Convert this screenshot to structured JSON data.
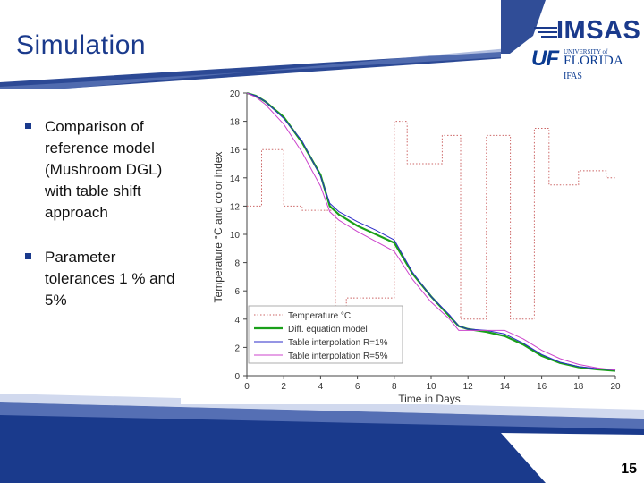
{
  "slide": {
    "title": "Simulation",
    "page_number": "15",
    "bullets": [
      "Comparison of reference model (Mushroom DGL)  with table shift approach",
      "Parameter tolerances 1 % and 5%"
    ]
  },
  "logo": {
    "imsas": "IMSAS",
    "uf": "UF",
    "university_of": "UNIVERSITY of",
    "florida": "FLORIDA",
    "ifas": "IFAS"
  },
  "colors": {
    "title": "#1a3a8c",
    "band": "#1a3a8c",
    "temperature": "#cc6666",
    "diff_eq": "#1aa01a",
    "table_1pct": "#2b2bc8",
    "table_5pct": "#cc44cc"
  },
  "chart_data": {
    "type": "line",
    "xlabel": "Time in Days",
    "ylabel": "Temperature °C and color index",
    "xlim": [
      0,
      20
    ],
    "ylim": [
      0,
      20
    ],
    "x_ticks": [
      0,
      2,
      4,
      6,
      8,
      10,
      12,
      14,
      16,
      18,
      20
    ],
    "y_ticks": [
      0,
      2,
      4,
      6,
      8,
      10,
      12,
      14,
      16,
      18,
      20
    ],
    "x_tick_labels": [
      "0",
      "2",
      "4",
      "6",
      "8",
      "10",
      "12",
      "14",
      "16",
      "18",
      "20"
    ],
    "y_tick_labels": [
      "0",
      "2",
      "4",
      "6",
      "8",
      "10",
      "12",
      "14",
      "16",
      "18",
      "20"
    ],
    "legend": {
      "placement": "bottom-left",
      "entries": [
        "Temperature °C",
        "Diff. equation model",
        "Table interpolation R=1%",
        "Table interpolation R=5%"
      ]
    },
    "series": [
      {
        "name": "Temperature °C",
        "style": "dotted",
        "x": [
          0,
          0.8,
          0.8,
          2,
          2,
          3,
          3,
          4.8,
          4.8,
          5.4,
          5.4,
          8,
          8,
          8.7,
          8.7,
          10.6,
          10.6,
          11.6,
          11.6,
          13,
          13,
          14.3,
          14.3,
          15.6,
          15.6,
          16.4,
          16.4,
          18,
          18,
          19.5,
          19.5,
          20
        ],
        "y": [
          12,
          12,
          16,
          16,
          12,
          12,
          11.7,
          11.7,
          4,
          4,
          5.5,
          5.5,
          18,
          18,
          15,
          15,
          17,
          17,
          4,
          4,
          17,
          17,
          4,
          4,
          17.5,
          17.5,
          13.5,
          13.5,
          14.5,
          14.5,
          14,
          14
        ]
      },
      {
        "name": "Diff. equation model",
        "x": [
          0,
          0.5,
          1,
          2,
          3,
          4,
          4.5,
          5,
          6,
          7,
          8,
          9,
          10,
          11,
          11.5,
          12,
          13,
          14,
          15,
          16,
          17,
          18,
          19,
          20
        ],
        "y": [
          20,
          19.8,
          19.4,
          18.3,
          16.5,
          14.2,
          12,
          11.4,
          10.6,
          10,
          9.4,
          7.2,
          5.6,
          4.2,
          3.5,
          3.3,
          3.1,
          2.8,
          2.2,
          1.4,
          0.9,
          0.6,
          0.45,
          0.35
        ]
      },
      {
        "name": "Table interpolation R=1%",
        "x": [
          0,
          0.5,
          1,
          2,
          3,
          4,
          4.5,
          5,
          6,
          7,
          8,
          9,
          10,
          11,
          11.5,
          12,
          13,
          14,
          15,
          16,
          17,
          18,
          19,
          20
        ],
        "y": [
          20,
          19.8,
          19.4,
          18.2,
          16.6,
          14.1,
          12.2,
          11.6,
          10.9,
          10.3,
          9.6,
          7.3,
          5.6,
          4.3,
          3.5,
          3.3,
          3.2,
          2.95,
          2.3,
          1.5,
          0.95,
          0.65,
          0.5,
          0.4
        ]
      },
      {
        "name": "Table interpolation R=5%",
        "x": [
          0,
          0.5,
          1,
          2,
          3,
          4,
          4.5,
          5,
          6,
          7,
          8,
          9,
          10,
          11,
          11.5,
          12,
          13,
          14,
          15,
          16,
          17,
          18,
          19,
          20
        ],
        "y": [
          20,
          19.7,
          19.2,
          17.8,
          15.8,
          13.4,
          11.6,
          11,
          10.2,
          9.5,
          8.8,
          6.8,
          5.2,
          4,
          3.2,
          3.2,
          3.2,
          3.2,
          2.6,
          1.8,
          1.2,
          0.8,
          0.55,
          0.4
        ]
      }
    ]
  }
}
